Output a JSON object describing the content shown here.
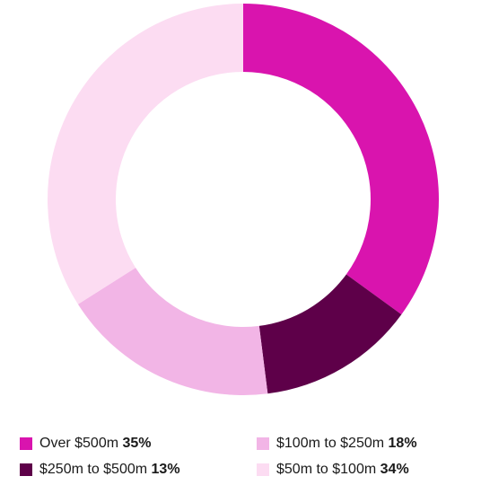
{
  "chart_data": {
    "type": "donut",
    "categories": [
      "Over $500m",
      "$250m to $500m",
      "$100m to $250m",
      "$50m to $100m"
    ],
    "values": [
      35,
      13,
      18,
      34
    ],
    "value_labels": [
      "35%",
      "13%",
      "18%",
      "34%"
    ],
    "colors": [
      "#d914ae",
      "#5e0049",
      "#f2b5e6",
      "#fcdcf2"
    ]
  }
}
